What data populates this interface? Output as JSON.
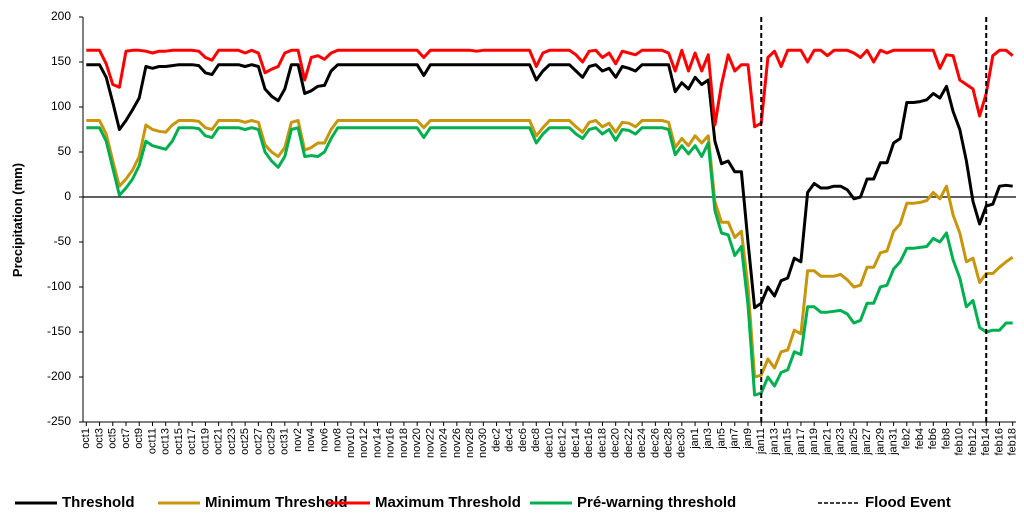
{
  "chart_data": {
    "type": "line",
    "y_label": "Precipitation (mm)",
    "categories": [
      "oct1",
      null,
      "oct3",
      null,
      "oct5",
      null,
      "oct7",
      null,
      "oct9",
      null,
      "oct11",
      null,
      "oct13",
      null,
      "oct15",
      null,
      "oct17",
      null,
      "oct19",
      null,
      "oct21",
      null,
      "oct23",
      null,
      "oct25",
      null,
      "oct27",
      null,
      "oct29",
      null,
      "oct31",
      null,
      "nov2",
      null,
      "nov4",
      null,
      "nov6",
      null,
      "nov8",
      null,
      "nov10",
      null,
      "nov12",
      null,
      "nov14",
      null,
      "nov16",
      null,
      "nov18",
      null,
      "nov20",
      null,
      "nov22",
      null,
      "nov24",
      null,
      "nov26",
      null,
      "nov28",
      null,
      "nov30",
      null,
      "dec2",
      null,
      "dec4",
      null,
      "dec6",
      null,
      "dec8",
      null,
      "dec10",
      null,
      "dec12",
      null,
      "dec14",
      null,
      "dec16",
      null,
      "dec18",
      null,
      "dec20",
      null,
      "dec22",
      null,
      "dec24",
      null,
      "dec26",
      null,
      "dec28",
      null,
      "dec30",
      null,
      "jan1",
      null,
      "jan3",
      null,
      "jan5",
      null,
      "jan7",
      null,
      "jan9",
      null,
      "jan11",
      null,
      "jan13",
      null,
      "jan15",
      null,
      "jan17",
      null,
      "jan19",
      null,
      "jan21",
      null,
      "jan23",
      null,
      "jan25",
      null,
      "jan27",
      null,
      "jan29",
      null,
      "jan31",
      null,
      "feb2",
      null,
      "feb4",
      null,
      "feb6",
      null,
      "feb8",
      null,
      "feb10",
      null,
      "feb12",
      null,
      "feb14",
      null,
      "feb16",
      null,
      "feb18"
    ],
    "series": [
      {
        "name": "Threshold",
        "color": "#000000",
        "values": [
          147,
          147,
          147,
          133,
          105,
          75,
          85,
          97,
          110,
          145,
          143,
          145,
          145,
          146,
          147,
          147,
          147,
          146,
          138,
          136,
          147,
          147,
          147,
          147,
          145,
          147,
          145,
          120,
          112,
          107,
          120,
          147,
          147,
          115,
          118,
          123,
          124,
          140,
          147,
          147,
          147,
          147,
          147,
          147,
          147,
          147,
          147,
          147,
          147,
          147,
          147,
          135,
          147,
          147,
          147,
          147,
          147,
          147,
          147,
          147,
          147,
          147,
          147,
          147,
          147,
          147,
          147,
          147,
          130,
          140,
          147,
          147,
          147,
          147,
          140,
          133,
          145,
          147,
          140,
          143,
          133,
          145,
          143,
          140,
          147,
          147,
          147,
          147,
          147,
          117,
          127,
          120,
          133,
          125,
          130,
          62,
          37,
          40,
          28,
          28,
          -50,
          -123,
          -118,
          -100,
          -110,
          -93,
          -90,
          -68,
          -72,
          5,
          15,
          10,
          10,
          12,
          12,
          8,
          -2,
          0,
          20,
          20,
          38,
          38,
          60,
          65,
          105,
          105,
          106,
          108,
          115,
          110,
          123,
          95,
          75,
          40,
          -5,
          -30,
          -10,
          -8,
          12,
          13,
          12
        ]
      },
      {
        "name": "Minimum Threshold",
        "color": "#c8960c",
        "values": [
          85,
          85,
          85,
          70,
          40,
          12,
          20,
          30,
          45,
          80,
          75,
          73,
          72,
          80,
          85,
          85,
          85,
          84,
          77,
          75,
          85,
          85,
          85,
          85,
          83,
          85,
          83,
          58,
          50,
          45,
          55,
          83,
          85,
          52,
          55,
          60,
          60,
          75,
          85,
          85,
          85,
          85,
          85,
          85,
          85,
          85,
          85,
          85,
          85,
          85,
          85,
          77,
          85,
          85,
          85,
          85,
          85,
          85,
          85,
          85,
          85,
          85,
          85,
          85,
          85,
          85,
          85,
          85,
          68,
          77,
          85,
          85,
          85,
          85,
          78,
          72,
          83,
          85,
          78,
          82,
          72,
          83,
          82,
          78,
          85,
          85,
          85,
          85,
          83,
          55,
          65,
          57,
          68,
          60,
          68,
          -5,
          -28,
          -28,
          -45,
          -38,
          -100,
          -200,
          -198,
          -180,
          -190,
          -172,
          -170,
          -148,
          -152,
          -82,
          -82,
          -88,
          -88,
          -88,
          -86,
          -92,
          -100,
          -98,
          -78,
          -78,
          -62,
          -60,
          -38,
          -30,
          -7,
          -7,
          -6,
          -4,
          5,
          -2,
          12,
          -20,
          -40,
          -72,
          -68,
          -95,
          -85,
          -85,
          -78,
          -72,
          -67
        ]
      },
      {
        "name": "Maximum Threshold",
        "color": "#ff0000",
        "values": [
          163,
          163,
          163,
          148,
          125,
          122,
          162,
          163,
          163,
          162,
          160,
          162,
          162,
          163,
          163,
          163,
          163,
          162,
          155,
          152,
          163,
          163,
          163,
          163,
          160,
          163,
          160,
          138,
          142,
          145,
          160,
          163,
          163,
          130,
          155,
          157,
          153,
          160,
          163,
          163,
          163,
          163,
          163,
          163,
          163,
          163,
          163,
          163,
          163,
          163,
          163,
          155,
          163,
          163,
          163,
          163,
          163,
          163,
          163,
          162,
          163,
          163,
          163,
          163,
          163,
          163,
          163,
          163,
          145,
          160,
          163,
          163,
          163,
          163,
          158,
          150,
          162,
          163,
          155,
          160,
          148,
          162,
          160,
          158,
          163,
          163,
          163,
          163,
          160,
          140,
          163,
          140,
          160,
          140,
          158,
          80,
          125,
          158,
          140,
          147,
          147,
          78,
          82,
          155,
          162,
          145,
          163,
          163,
          163,
          150,
          163,
          163,
          157,
          163,
          163,
          163,
          160,
          155,
          163,
          150,
          163,
          160,
          163,
          163,
          163,
          163,
          163,
          163,
          163,
          143,
          158,
          157,
          130,
          125,
          120,
          90,
          115,
          157,
          163,
          163,
          157
        ]
      },
      {
        "name": "Pré-warning  threshold",
        "color": "#00b050",
        "values": [
          77,
          77,
          77,
          62,
          32,
          2,
          10,
          20,
          35,
          62,
          57,
          55,
          53,
          62,
          77,
          77,
          77,
          76,
          68,
          66,
          77,
          77,
          77,
          77,
          75,
          77,
          75,
          50,
          40,
          33,
          45,
          75,
          77,
          45,
          46,
          45,
          50,
          65,
          77,
          77,
          77,
          77,
          77,
          77,
          77,
          77,
          77,
          77,
          77,
          77,
          77,
          66,
          77,
          77,
          77,
          77,
          77,
          77,
          77,
          77,
          77,
          77,
          77,
          77,
          77,
          77,
          77,
          77,
          60,
          70,
          77,
          77,
          77,
          77,
          70,
          65,
          75,
          77,
          70,
          75,
          63,
          75,
          74,
          70,
          77,
          77,
          77,
          77,
          75,
          47,
          57,
          48,
          57,
          45,
          60,
          -15,
          -40,
          -42,
          -65,
          -55,
          -120,
          -220,
          -218,
          -200,
          -210,
          -195,
          -192,
          -172,
          -175,
          -122,
          -122,
          -128,
          -128,
          -127,
          -126,
          -130,
          -140,
          -137,
          -118,
          -118,
          -100,
          -98,
          -80,
          -72,
          -57,
          -57,
          -56,
          -55,
          -46,
          -50,
          -40,
          -70,
          -90,
          -122,
          -115,
          -145,
          -150,
          -148,
          -148,
          -140,
          -140
        ]
      }
    ],
    "flood_event": {
      "name": "Flood Event",
      "color": "#000000",
      "at": [
        "jan11",
        "feb14"
      ]
    },
    "ylim": [
      -250,
      200
    ],
    "yticks": [
      -250,
      -200,
      -150,
      -100,
      -50,
      0,
      50,
      100,
      150,
      200
    ],
    "legend": "bottom"
  }
}
